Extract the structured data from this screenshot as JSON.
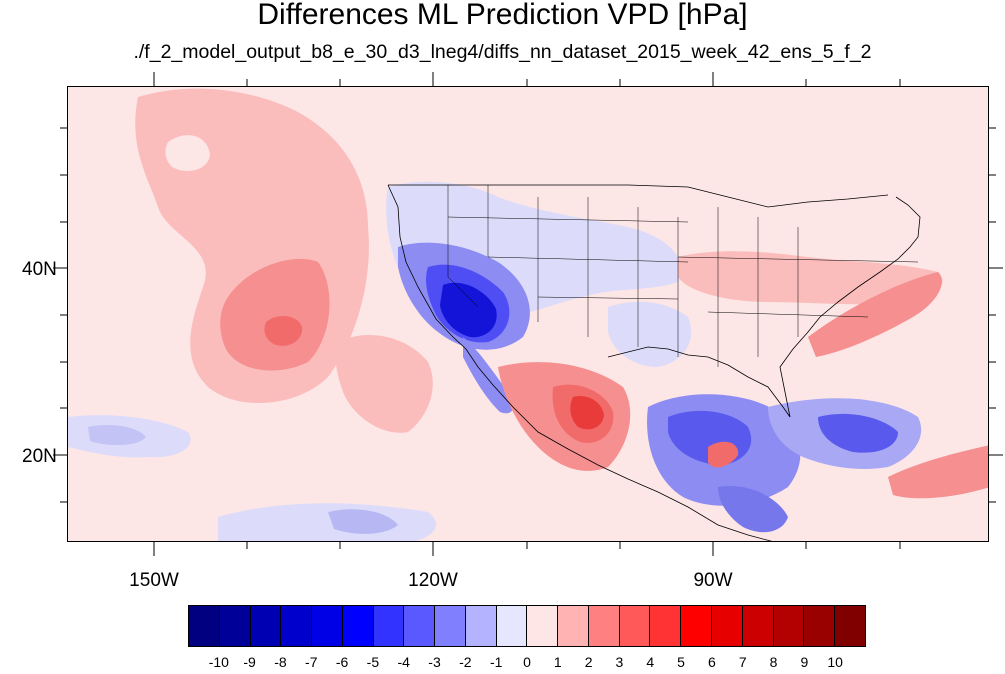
{
  "header": {
    "title": "Differences ML Prediction VPD [hPa]",
    "subtitle": "./f_2_model_output_b8_e_30_d3_lneg4/diffs_nn_dataset_2015_week_42_ens_5_f_2"
  },
  "map": {
    "projection": "cylindrical equidistant",
    "lon_range": [
      -160,
      -61
    ],
    "lat_range": [
      11,
      60
    ],
    "lon_ticks": [
      {
        "value": -150,
        "label": "150W"
      },
      {
        "value": -120,
        "label": "120W"
      },
      {
        "value": -90,
        "label": "90W"
      }
    ],
    "lat_ticks": [
      {
        "value": 40,
        "label": "40N"
      },
      {
        "value": 20,
        "label": "20N"
      }
    ],
    "background_color": "#fde6e6"
  },
  "colorbar": {
    "colors": [
      "#000080",
      "#000099",
      "#0000b3",
      "#0000cc",
      "#0000e6",
      "#0000ff",
      "#3333ff",
      "#5959ff",
      "#8080ff",
      "#b3b3ff",
      "#e6e6ff",
      "#ffe6e6",
      "#ffb3b3",
      "#ff8080",
      "#ff5959",
      "#ff3333",
      "#ff0000",
      "#e60000",
      "#cc0000",
      "#b30000",
      "#990000",
      "#800000"
    ],
    "labels": [
      "-10",
      "-9",
      "-8",
      "-7",
      "-6",
      "-5",
      "-4",
      "-3",
      "-2",
      "-1",
      "0",
      "1",
      "2",
      "3",
      "4",
      "5",
      "6",
      "7",
      "8",
      "9",
      "10"
    ]
  }
}
